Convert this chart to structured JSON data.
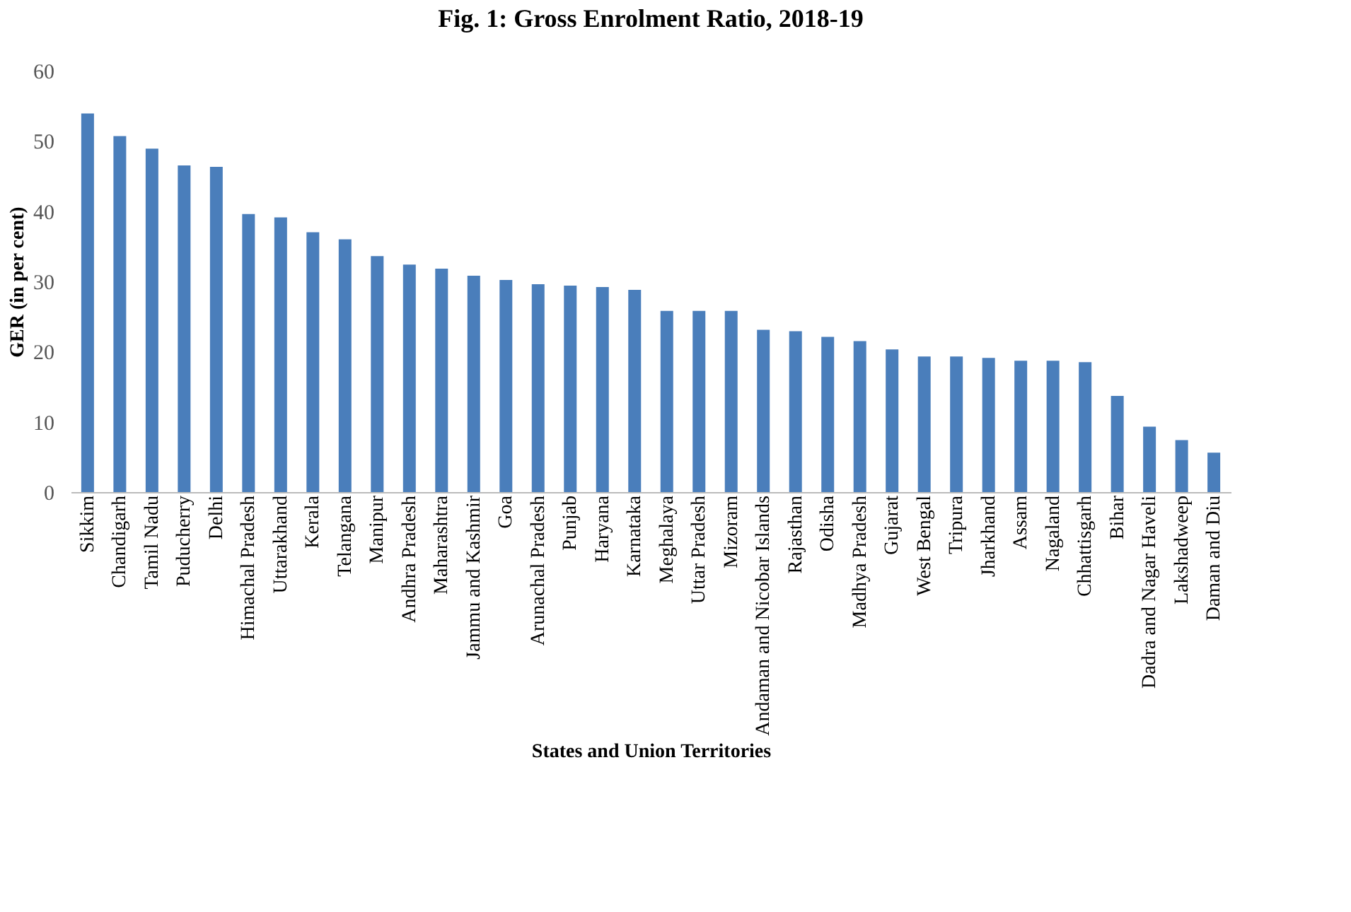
{
  "chart_data": {
    "type": "bar",
    "title": "Fig. 1: Gross Enrolment Ratio, 2018-19",
    "xlabel": "States and Union Territories",
    "ylabel": "GER (in per cent)",
    "categories": [
      "Sikkim",
      "Chandigarh",
      "Tamil Nadu",
      "Puducherry",
      "Delhi",
      "Himachal Pradesh",
      "Uttarakhand",
      "Kerala",
      "Telangana",
      "Manipur",
      "Andhra Pradesh",
      "Maharashtra",
      "Jammu and Kashmir",
      "Goa",
      "Arunachal Pradesh",
      "Punjab",
      "Haryana",
      "Karnataka",
      "Meghalaya",
      "Uttar Pradesh",
      "Mizoram",
      "Andaman and Nicobar Islands",
      "Rajasthan",
      "Odisha",
      "Madhya Pradesh",
      "Gujarat",
      "West Bengal",
      "Tripura",
      "Jharkhand",
      "Assam",
      "Nagaland",
      "Chhattisgarh",
      "Bihar",
      "Dadra and Nagar Haveli",
      "Lakshadweep",
      "Daman and Diu"
    ],
    "values": [
      53.9,
      50.7,
      48.9,
      46.5,
      46.3,
      39.6,
      39.1,
      37.0,
      36.0,
      33.6,
      32.4,
      31.8,
      30.8,
      30.2,
      29.6,
      29.4,
      29.2,
      28.8,
      25.8,
      25.8,
      25.8,
      23.1,
      22.9,
      22.1,
      21.5,
      20.3,
      19.3,
      19.3,
      19.1,
      18.7,
      18.7,
      18.5,
      13.7,
      9.3,
      7.4,
      5.6
    ],
    "color": "#4a7ebb",
    "ylim": [
      0,
      60
    ],
    "yticks": [
      0,
      10,
      20,
      30,
      40,
      50,
      60
    ],
    "grid": false
  }
}
